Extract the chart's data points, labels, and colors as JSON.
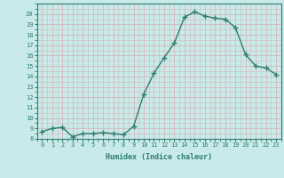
{
  "x": [
    0,
    1,
    2,
    3,
    4,
    5,
    6,
    7,
    8,
    9,
    10,
    11,
    12,
    13,
    14,
    15,
    16,
    17,
    18,
    19,
    20,
    21,
    22,
    23
  ],
  "y": [
    8.7,
    9.0,
    9.1,
    8.2,
    8.5,
    8.5,
    8.6,
    8.5,
    8.4,
    9.2,
    12.3,
    14.3,
    15.8,
    17.2,
    19.7,
    20.2,
    19.8,
    19.6,
    19.5,
    18.7,
    16.1,
    15.0,
    14.8,
    14.2
  ],
  "xlabel": "Humidex (Indice chaleur)",
  "xlim": [
    -0.5,
    23.5
  ],
  "ylim": [
    8,
    21
  ],
  "yticks": [
    8,
    9,
    10,
    11,
    12,
    13,
    14,
    15,
    16,
    17,
    18,
    19,
    20
  ],
  "xticks": [
    0,
    1,
    2,
    3,
    4,
    5,
    6,
    7,
    8,
    9,
    10,
    11,
    12,
    13,
    14,
    15,
    16,
    17,
    18,
    19,
    20,
    21,
    22,
    23
  ],
  "line_color": "#2e7d6e",
  "bg_color": "#c8eaea",
  "grid_color": "#d4b8b8",
  "marker": "+",
  "marker_size": 4.0,
  "line_width": 1.0
}
